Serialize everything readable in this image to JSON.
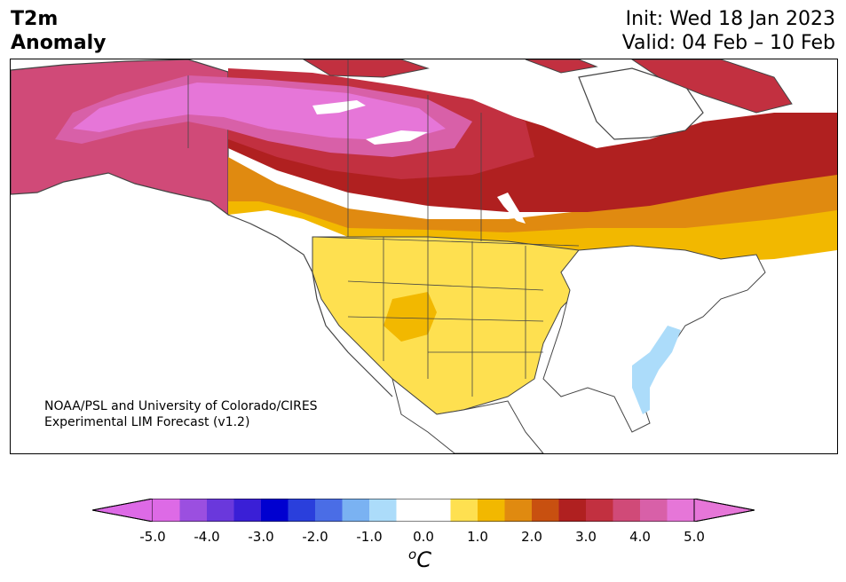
{
  "header": {
    "title_line1": "T2m",
    "title_line2": "Anomaly",
    "init": "Init: Wed 18 Jan 2023",
    "valid": "Valid: 04 Feb – 10 Feb"
  },
  "map": {
    "credit_line1": "NOAA/PSL and University of Colorado/CIRES",
    "credit_line2": "Experimental LIM Forecast (v1.2)"
  },
  "colorbar": {
    "unit_sup": "o",
    "unit": "C",
    "ticks": [
      "-5.0",
      "-4.0",
      "-3.0",
      "-2.0",
      "-1.0",
      "0.0",
      "1.0",
      "2.0",
      "3.0",
      "4.0",
      "5.0"
    ],
    "colors": [
      "#dd6ae6",
      "#9b4fe0",
      "#6a38dc",
      "#3a1fd6",
      "#0000d0",
      "#2a3fdc",
      "#4a6de6",
      "#7ab2f2",
      "#acdcfa",
      "#ffffff",
      "#ffffff",
      "#fee050",
      "#f2b800",
      "#e08a10",
      "#c85010",
      "#b02020",
      "#c23040",
      "#d04a78",
      "#d860a8",
      "#e676d8"
    ],
    "extend_low_color": "#dd6ae6",
    "extend_high_color": "#e676d8"
  }
}
